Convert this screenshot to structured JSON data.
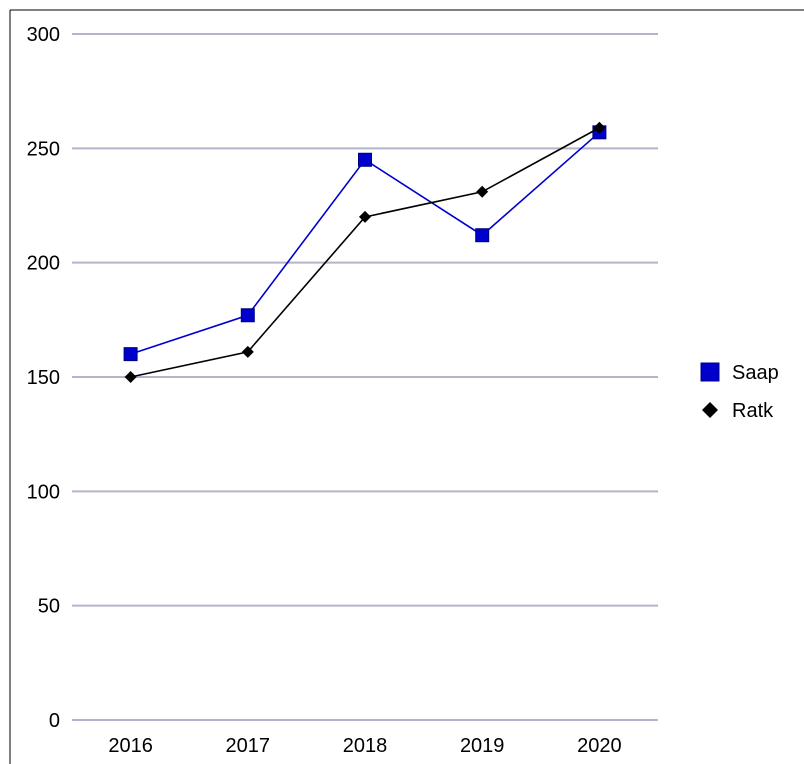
{
  "chart_data": {
    "type": "line",
    "title": "",
    "xlabel": "",
    "ylabel": "",
    "categories": [
      "2016",
      "2017",
      "2018",
      "2019",
      "2020"
    ],
    "ylim": [
      0,
      300
    ],
    "yticks": [
      0,
      50,
      100,
      150,
      200,
      250,
      300
    ],
    "grid": true,
    "legend_position": "right",
    "series": [
      {
        "name": "Saap",
        "values": [
          160,
          177,
          245,
          212,
          257
        ],
        "color": "#0000cc",
        "marker": "square"
      },
      {
        "name": "Ratk",
        "values": [
          150,
          161,
          220,
          231,
          259
        ],
        "color": "#000000",
        "marker": "diamond"
      }
    ]
  }
}
